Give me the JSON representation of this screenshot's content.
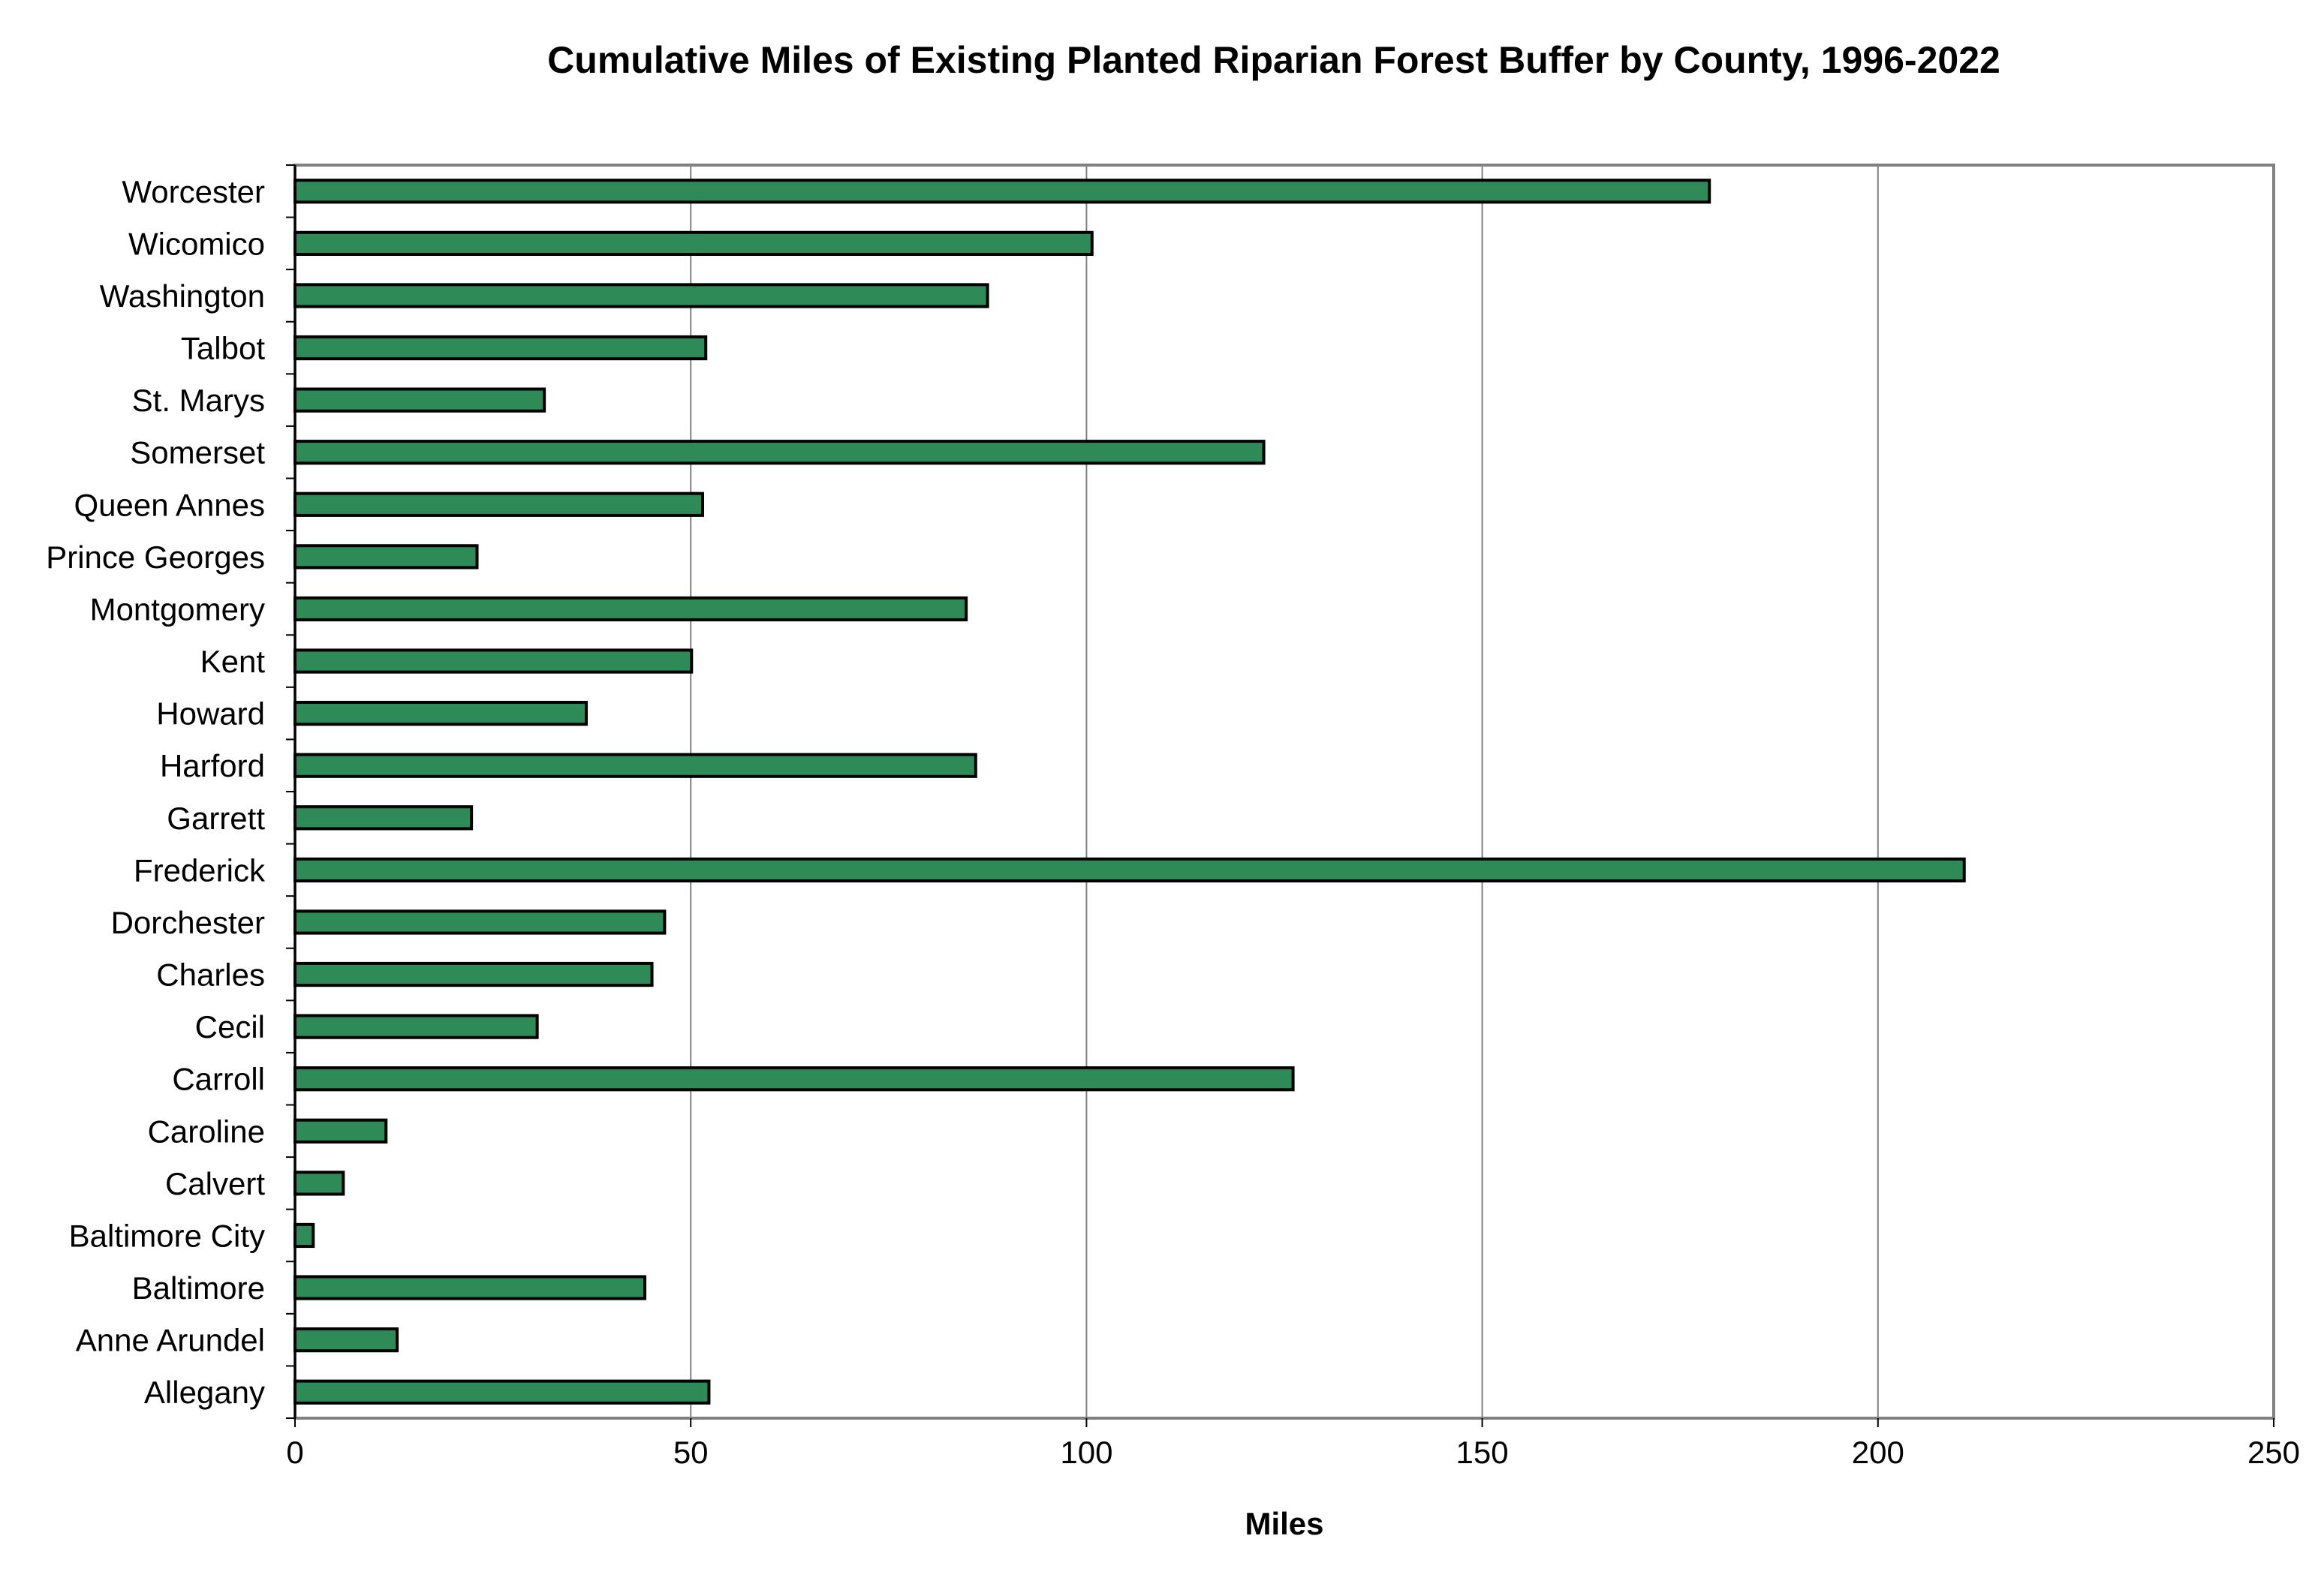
{
  "chart_data": {
    "type": "bar",
    "orientation": "horizontal",
    "title": "Cumulative Miles of Existing Planted Riparian Forest Buffer by County, 1996-2022",
    "xlabel": "Miles",
    "ylabel": "",
    "xlim": [
      0,
      250
    ],
    "xticks": [
      0,
      50,
      100,
      150,
      200,
      250
    ],
    "grid": "vertical",
    "bar_color": "#2e8b57",
    "bar_edge_color": "#000000",
    "categories": [
      "Worcester",
      "Wicomico",
      "Washington",
      "Talbot",
      "St. Marys",
      "Somerset",
      "Queen Annes",
      "Prince Georges",
      "Montgomery",
      "Kent",
      "Howard",
      "Harford",
      "Garrett",
      "Frederick",
      "Dorchester",
      "Charles",
      "Cecil",
      "Carroll",
      "Caroline",
      "Calvert",
      "Baltimore City",
      "Baltimore",
      "Anne Arundel",
      "Allegany"
    ],
    "values": [
      178.7,
      100.7,
      87.5,
      51.9,
      31.5,
      122.4,
      51.5,
      23.0,
      84.8,
      50.1,
      36.8,
      86.0,
      22.3,
      210.9,
      46.7,
      45.1,
      30.6,
      126.1,
      11.5,
      6.1,
      2.3,
      44.2,
      12.9,
      52.3
    ]
  }
}
